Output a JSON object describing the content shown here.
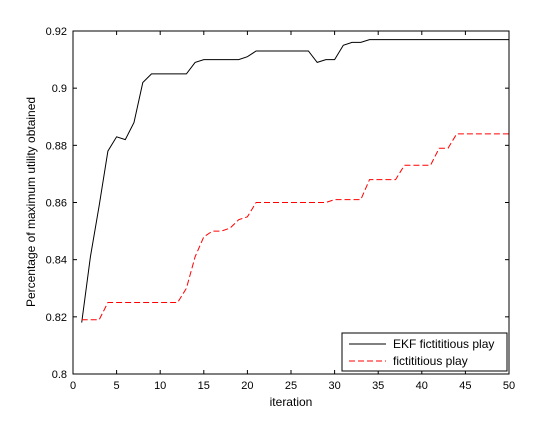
{
  "chart_data": {
    "type": "line",
    "xlabel": "iteration",
    "ylabel": "Percentage of maximum utility obtained",
    "xlim": [
      0,
      50
    ],
    "ylim": [
      0.8,
      0.92
    ],
    "xticks": [
      0,
      5,
      10,
      15,
      20,
      25,
      30,
      35,
      40,
      45,
      50
    ],
    "yticks": [
      0.8,
      0.82,
      0.84,
      0.86,
      0.88,
      0.9,
      0.92
    ],
    "ytick_labels": [
      "0.8",
      "0.82",
      "0.84",
      "0.86",
      "0.88",
      "0.9",
      "0.92"
    ],
    "grid": false,
    "legend_position": "bottom-right",
    "series": [
      {
        "name": "EKF fictititious play",
        "color": "#000000",
        "style": "solid",
        "x": [
          1,
          2,
          3,
          4,
          5,
          6,
          7,
          8,
          9,
          10,
          11,
          12,
          13,
          14,
          15,
          16,
          17,
          18,
          19,
          20,
          21,
          22,
          23,
          24,
          25,
          26,
          27,
          28,
          29,
          30,
          31,
          32,
          33,
          34,
          35,
          36,
          37,
          38,
          39,
          40,
          41,
          42,
          43,
          44,
          45,
          46,
          47,
          48,
          49,
          50
        ],
        "y": [
          0.818,
          0.841,
          0.859,
          0.878,
          0.883,
          0.882,
          0.888,
          0.902,
          0.905,
          0.905,
          0.905,
          0.905,
          0.905,
          0.909,
          0.91,
          0.91,
          0.91,
          0.91,
          0.91,
          0.911,
          0.913,
          0.913,
          0.913,
          0.913,
          0.913,
          0.913,
          0.913,
          0.909,
          0.91,
          0.91,
          0.915,
          0.916,
          0.916,
          0.917,
          0.917,
          0.917,
          0.917,
          0.917,
          0.917,
          0.917,
          0.917,
          0.917,
          0.917,
          0.917,
          0.917,
          0.917,
          0.917,
          0.917,
          0.917,
          0.917
        ]
      },
      {
        "name": "fictititious play",
        "color": "#ff0000",
        "style": "dashed",
        "x": [
          1,
          2,
          3,
          4,
          5,
          6,
          7,
          8,
          9,
          10,
          11,
          12,
          13,
          14,
          15,
          16,
          17,
          18,
          19,
          20,
          21,
          22,
          23,
          24,
          25,
          26,
          27,
          28,
          29,
          30,
          31,
          32,
          33,
          34,
          35,
          36,
          37,
          38,
          39,
          40,
          41,
          42,
          43,
          44,
          45,
          46,
          47,
          48,
          49,
          50
        ],
        "y": [
          0.819,
          0.819,
          0.819,
          0.825,
          0.825,
          0.825,
          0.825,
          0.825,
          0.825,
          0.825,
          0.825,
          0.825,
          0.83,
          0.841,
          0.848,
          0.85,
          0.85,
          0.851,
          0.854,
          0.855,
          0.86,
          0.86,
          0.86,
          0.86,
          0.86,
          0.86,
          0.86,
          0.86,
          0.86,
          0.861,
          0.861,
          0.861,
          0.861,
          0.868,
          0.868,
          0.868,
          0.868,
          0.873,
          0.873,
          0.873,
          0.873,
          0.879,
          0.879,
          0.884,
          0.884,
          0.884,
          0.884,
          0.884,
          0.884,
          0.884
        ]
      }
    ]
  }
}
